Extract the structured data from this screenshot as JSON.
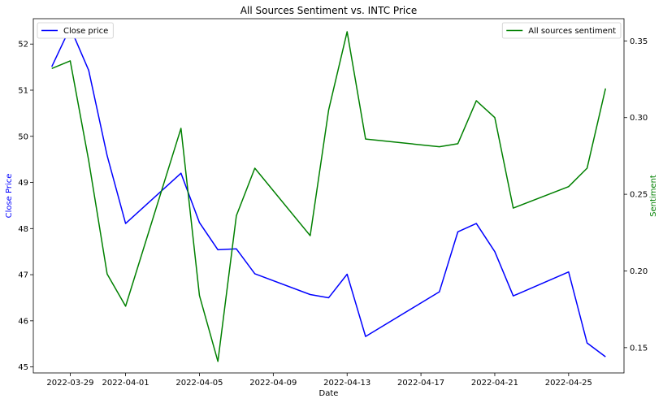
{
  "chart_data": {
    "type": "line",
    "title": "All Sources Sentiment vs. INTC Price",
    "xlabel": "Date",
    "ylabel_left": "Close Price",
    "ylabel_right": "Sentiment",
    "x_tick_labels": [
      "2022-03-29",
      "2022-04-01",
      "2022-04-05",
      "2022-04-09",
      "2022-04-13",
      "2022-04-17",
      "2022-04-21",
      "2022-04-25"
    ],
    "x_ticks": [
      "2022-03-29",
      "2022-04-01",
      "2022-04-05",
      "2022-04-09",
      "2022-04-13",
      "2022-04-17",
      "2022-04-21",
      "2022-04-25"
    ],
    "y_left_ticks": [
      45,
      46,
      47,
      48,
      49,
      50,
      51,
      52
    ],
    "y_right_ticks": [
      0.15,
      0.2,
      0.25,
      0.3,
      0.35
    ],
    "ylim_left": [
      44.87,
      52.55
    ],
    "ylim_right": [
      0.1335,
      0.3645
    ],
    "xlim": [
      "2022-03-27",
      "2022-04-28"
    ],
    "grid": false,
    "series": [
      {
        "name": "Close price",
        "axis": "left",
        "color": "#0000ff",
        "legend_position": "top-left",
        "points": [
          [
            "2022-03-28",
            51.51
          ],
          [
            "2022-03-29",
            52.36
          ],
          [
            "2022-03-30",
            51.43
          ],
          [
            "2022-03-31",
            49.58
          ],
          [
            "2022-04-01",
            48.11
          ],
          [
            "2022-04-04",
            49.2
          ],
          [
            "2022-04-05",
            48.13
          ],
          [
            "2022-04-06",
            47.54
          ],
          [
            "2022-04-07",
            47.56
          ],
          [
            "2022-04-08",
            47.02
          ],
          [
            "2022-04-11",
            46.57
          ],
          [
            "2022-04-12",
            46.5
          ],
          [
            "2022-04-13",
            47.01
          ],
          [
            "2022-04-14",
            45.66
          ],
          [
            "2022-04-18",
            46.63
          ],
          [
            "2022-04-19",
            47.93
          ],
          [
            "2022-04-20",
            48.11
          ],
          [
            "2022-04-21",
            47.5
          ],
          [
            "2022-04-22",
            46.54
          ],
          [
            "2022-04-25",
            47.06
          ],
          [
            "2022-04-26",
            45.52
          ],
          [
            "2022-04-27",
            45.22
          ]
        ]
      },
      {
        "name": "All sources sentiment",
        "axis": "right",
        "color": "#008000",
        "legend_position": "top-right",
        "points": [
          [
            "2022-03-28",
            0.332
          ],
          [
            "2022-03-29",
            0.337
          ],
          [
            "2022-03-30",
            0.272
          ],
          [
            "2022-03-31",
            0.198
          ],
          [
            "2022-04-01",
            0.177
          ],
          [
            "2022-04-04",
            0.293
          ],
          [
            "2022-04-05",
            0.184
          ],
          [
            "2022-04-06",
            0.141
          ],
          [
            "2022-04-07",
            0.236
          ],
          [
            "2022-04-08",
            0.267
          ],
          [
            "2022-04-11",
            0.223
          ],
          [
            "2022-04-12",
            0.305
          ],
          [
            "2022-04-13",
            0.356
          ],
          [
            "2022-04-14",
            0.286
          ],
          [
            "2022-04-18",
            0.281
          ],
          [
            "2022-04-19",
            0.283
          ],
          [
            "2022-04-20",
            0.311
          ],
          [
            "2022-04-21",
            0.3
          ],
          [
            "2022-04-22",
            0.241
          ],
          [
            "2022-04-25",
            0.255
          ],
          [
            "2022-04-26",
            0.267
          ],
          [
            "2022-04-27",
            0.319
          ]
        ]
      }
    ]
  }
}
